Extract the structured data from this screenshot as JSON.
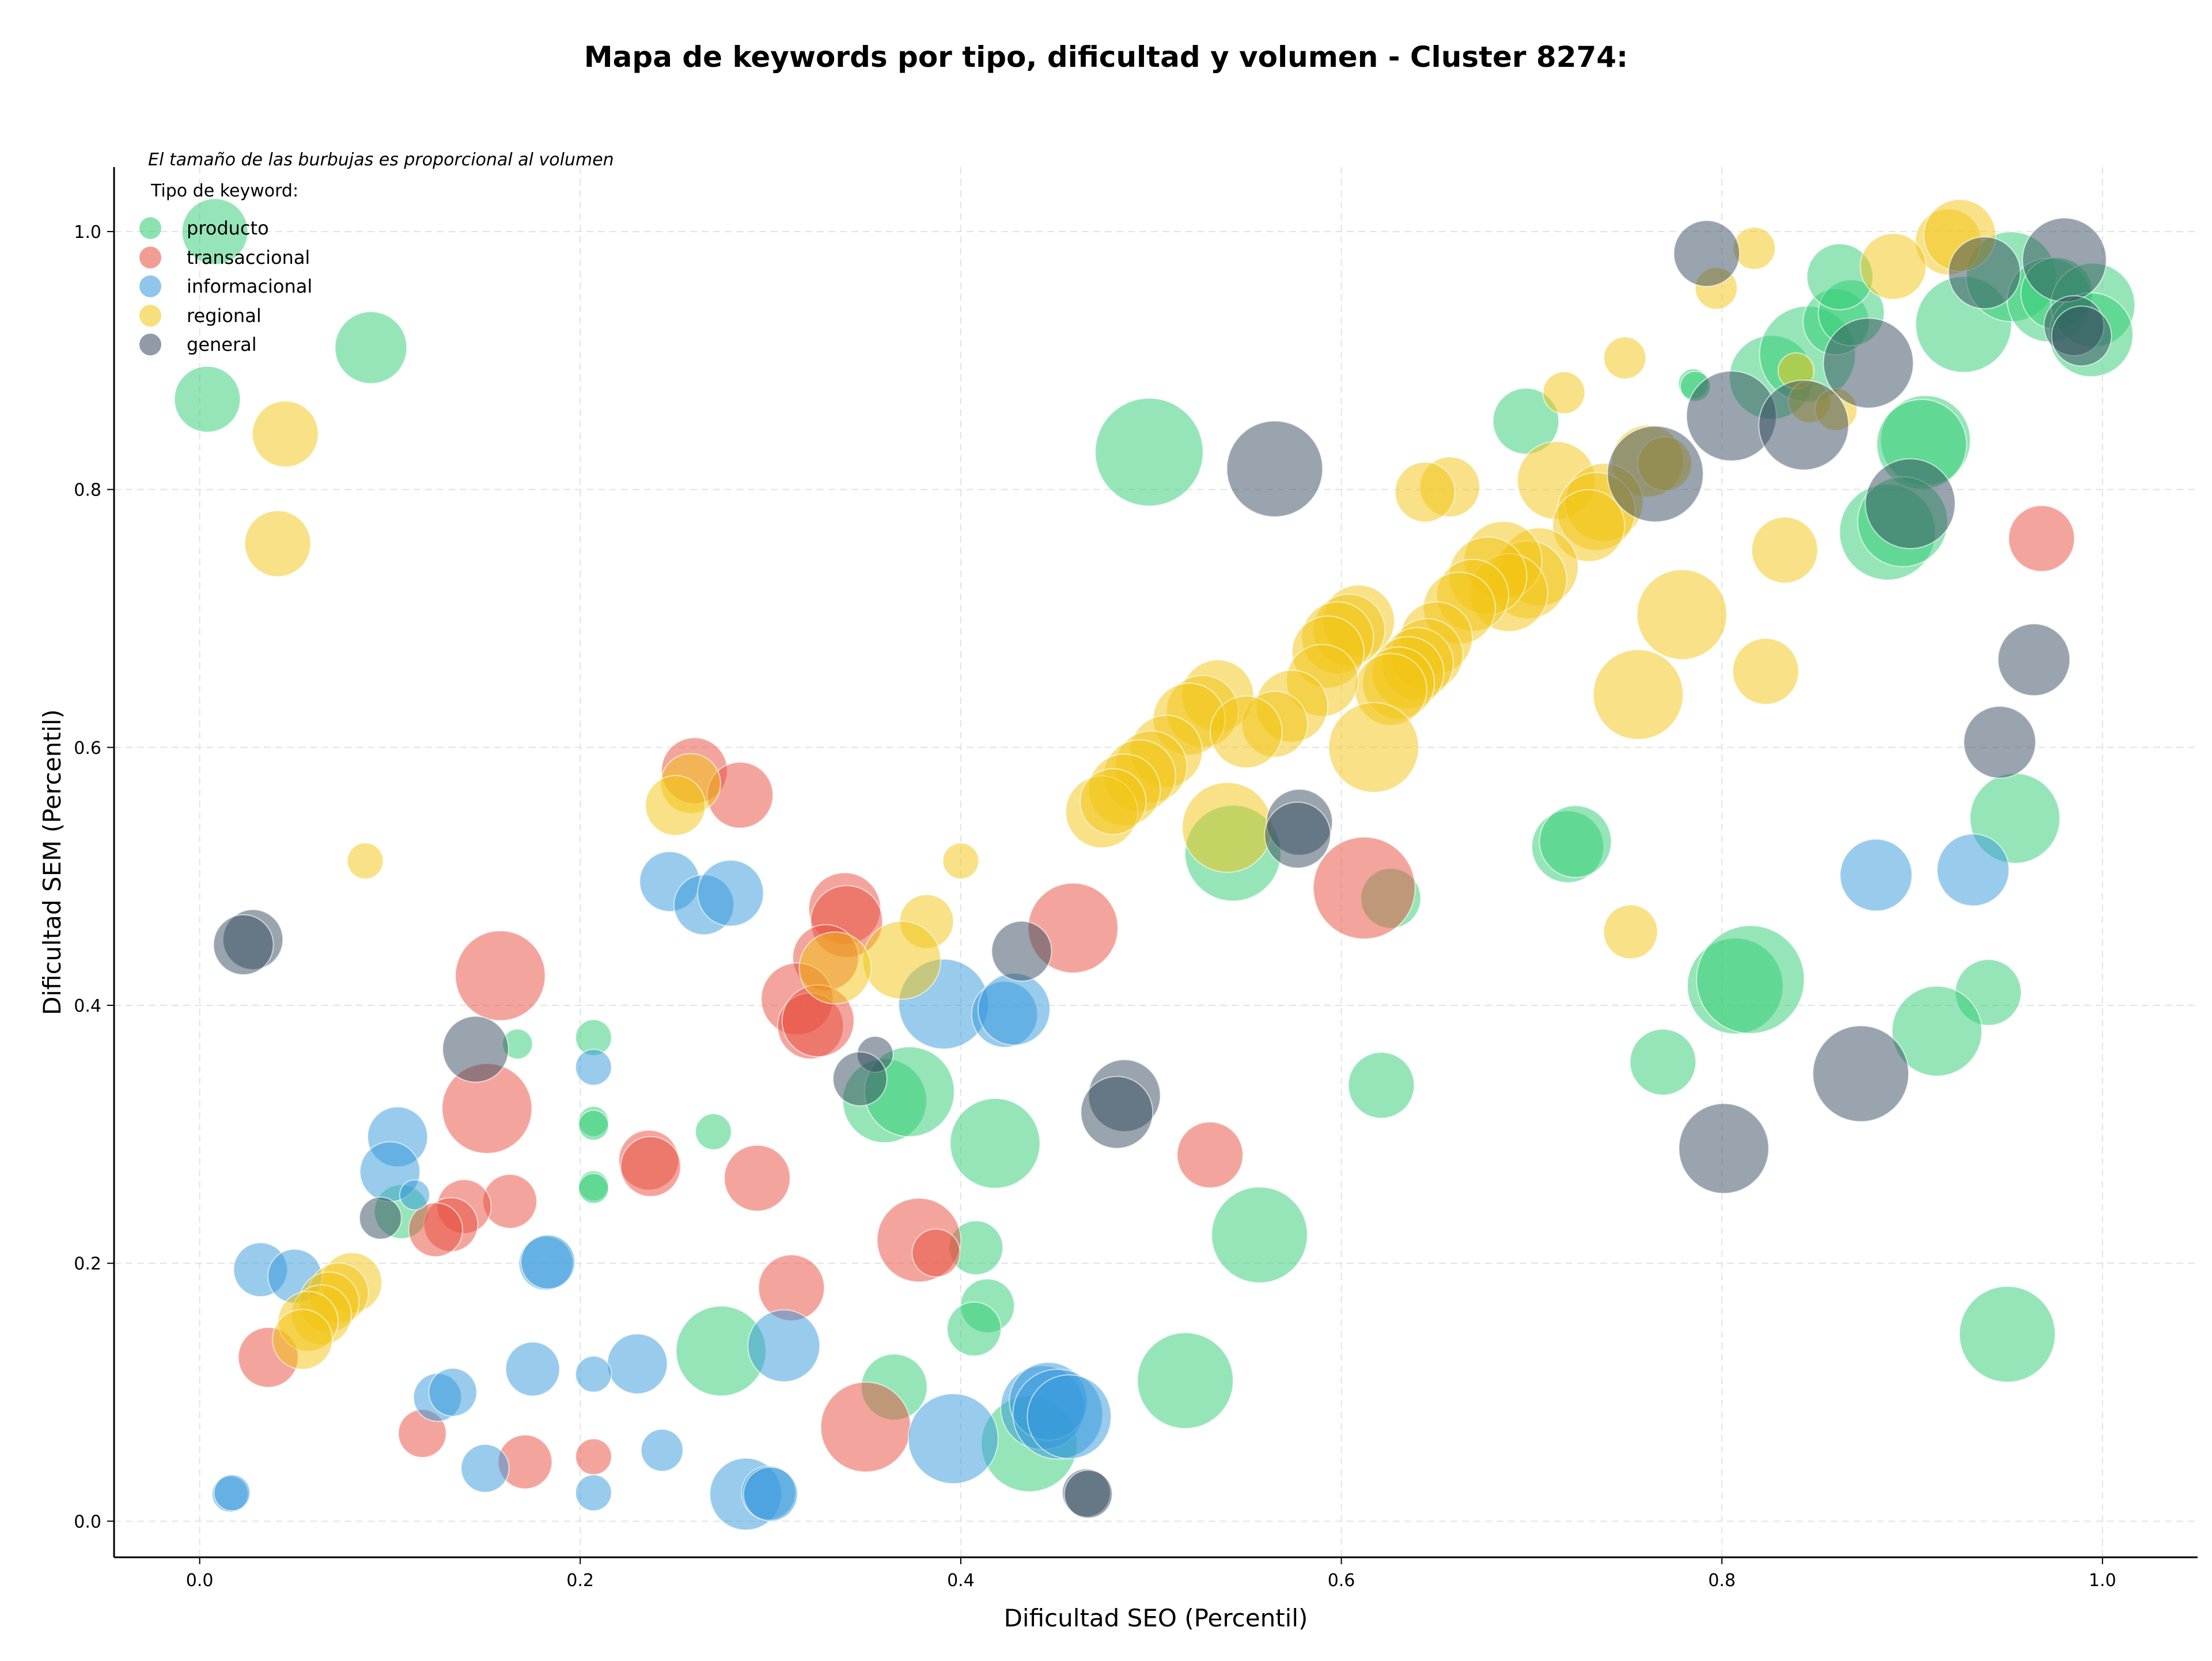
{
  "chart_data": {
    "type": "scatter",
    "title": "Mapa de keywords por tipo, dificultad y volumen - Cluster 8274:",
    "note": "El tamaño de las burbujas es proporcional al volumen",
    "xlabel": "Dificultad SEO (Percentil)",
    "ylabel": "Dificultad SEM (Percentil)",
    "xlim": [
      -0.045,
      1.05
    ],
    "ylim": [
      -0.028,
      1.05
    ],
    "xticks": [
      "0.0",
      "0.2",
      "0.4",
      "0.6",
      "0.8",
      "1.0"
    ],
    "yticks": [
      "0.0",
      "0.2",
      "0.4",
      "0.6",
      "0.8",
      "1.0"
    ],
    "grid": true,
    "legend_title": "Tipo de keyword:",
    "legend_position": "top-left",
    "series": [
      {
        "name": "producto",
        "color": "#2ecc71",
        "points": [
          [
            0.008,
            1.0,
            1.1
          ],
          [
            0.004,
            0.87,
            1.1
          ],
          [
            0.09,
            0.91,
            1.2
          ],
          [
            0.499,
            0.829,
            1.8
          ],
          [
            0.697,
            0.853,
            1.1
          ],
          [
            0.826,
            0.887,
            1.4
          ],
          [
            0.845,
            0.905,
            1.6
          ],
          [
            0.86,
            0.93,
            1.1
          ],
          [
            0.868,
            0.937,
            1.1
          ],
          [
            0.862,
            0.965,
            1.1
          ],
          [
            0.927,
            0.928,
            1.6
          ],
          [
            0.952,
            0.965,
            1.5
          ],
          [
            0.972,
            0.947,
            1.4
          ],
          [
            0.976,
            0.952,
            1.2
          ],
          [
            0.995,
            0.943,
            1.4
          ],
          [
            0.994,
            0.92,
            1.4
          ],
          [
            0.907,
            0.838,
            1.5
          ],
          [
            0.905,
            0.835,
            1.5
          ],
          [
            0.887,
            0.767,
            1.6
          ],
          [
            0.895,
            0.775,
            1.5
          ],
          [
            0.785,
            0.882,
            0.5
          ],
          [
            0.786,
            0.88,
            0.5
          ],
          [
            0.543,
            0.518,
            1.6
          ],
          [
            0.626,
            0.483,
            1.0
          ],
          [
            0.719,
            0.523,
            1.2
          ],
          [
            0.723,
            0.527,
            1.2
          ],
          [
            0.954,
            0.545,
            1.5
          ],
          [
            0.807,
            0.415,
            1.6
          ],
          [
            0.815,
            0.42,
            1.8
          ],
          [
            0.94,
            0.41,
            1.1
          ],
          [
            0.913,
            0.38,
            1.5
          ],
          [
            0.769,
            0.356,
            1.1
          ],
          [
            0.621,
            0.338,
            1.1
          ],
          [
            0.557,
            0.222,
            1.6
          ],
          [
            0.418,
            0.293,
            1.5
          ],
          [
            0.36,
            0.326,
            1.4
          ],
          [
            0.373,
            0.333,
            1.5
          ],
          [
            0.207,
            0.375,
            0.6
          ],
          [
            0.167,
            0.37,
            0.5
          ],
          [
            0.207,
            0.31,
            0.5
          ],
          [
            0.207,
            0.307,
            0.5
          ],
          [
            0.27,
            0.302,
            0.6
          ],
          [
            0.207,
            0.26,
            0.5
          ],
          [
            0.207,
            0.258,
            0.5
          ],
          [
            0.106,
            0.24,
            0.9
          ],
          [
            0.408,
            0.212,
            0.9
          ],
          [
            0.414,
            0.167,
            0.9
          ],
          [
            0.407,
            0.149,
            0.9
          ],
          [
            0.274,
            0.132,
            1.5
          ],
          [
            0.365,
            0.104,
            1.1
          ],
          [
            0.518,
            0.109,
            1.6
          ],
          [
            0.436,
            0.06,
            1.6
          ],
          [
            0.95,
            0.145,
            1.6
          ]
        ]
      },
      {
        "name": "transaccional",
        "color": "#e74c3c",
        "points": [
          [
            0.968,
            0.762,
            1.1
          ],
          [
            0.612,
            0.491,
            1.7
          ],
          [
            0.459,
            0.46,
            1.5
          ],
          [
            0.339,
            0.475,
            1.2
          ],
          [
            0.34,
            0.465,
            1.2
          ],
          [
            0.329,
            0.437,
            1.1
          ],
          [
            0.314,
            0.405,
            1.2
          ],
          [
            0.321,
            0.384,
            1.1
          ],
          [
            0.325,
            0.388,
            1.2
          ],
          [
            0.26,
            0.582,
            1.1
          ],
          [
            0.284,
            0.563,
            1.1
          ],
          [
            0.158,
            0.423,
            1.5
          ],
          [
            0.151,
            0.32,
            1.5
          ],
          [
            0.163,
            0.248,
            0.9
          ],
          [
            0.139,
            0.244,
            0.9
          ],
          [
            0.132,
            0.23,
            0.9
          ],
          [
            0.124,
            0.226,
            0.9
          ],
          [
            0.236,
            0.28,
            1.0
          ],
          [
            0.237,
            0.275,
            1.0
          ],
          [
            0.293,
            0.266,
            1.1
          ],
          [
            0.531,
            0.284,
            1.1
          ],
          [
            0.378,
            0.218,
            1.4
          ],
          [
            0.387,
            0.208,
            0.8
          ],
          [
            0.311,
            0.181,
            1.1
          ],
          [
            0.036,
            0.127,
            1.0
          ],
          [
            0.117,
            0.068,
            0.8
          ],
          [
            0.171,
            0.046,
            0.9
          ],
          [
            0.207,
            0.05,
            0.6
          ],
          [
            0.35,
            0.073,
            1.5
          ]
        ]
      },
      {
        "name": "informacional",
        "color": "#3498db",
        "points": [
          [
            0.881,
            0.501,
            1.2
          ],
          [
            0.932,
            0.505,
            1.2
          ],
          [
            0.391,
            0.401,
            1.5
          ],
          [
            0.423,
            0.393,
            1.1
          ],
          [
            0.428,
            0.397,
            1.2
          ],
          [
            0.247,
            0.496,
            1.0
          ],
          [
            0.265,
            0.478,
            1.0
          ],
          [
            0.279,
            0.487,
            1.1
          ],
          [
            0.207,
            0.352,
            0.6
          ],
          [
            0.104,
            0.298,
            1.0
          ],
          [
            0.1,
            0.271,
            1.0
          ],
          [
            0.113,
            0.253,
            0.5
          ],
          [
            0.182,
            0.2,
            0.9
          ],
          [
            0.183,
            0.201,
            0.9
          ],
          [
            0.032,
            0.195,
            0.9
          ],
          [
            0.05,
            0.19,
            0.9
          ],
          [
            0.175,
            0.118,
            0.9
          ],
          [
            0.23,
            0.122,
            1.0
          ],
          [
            0.207,
            0.114,
            0.6
          ],
          [
            0.125,
            0.096,
            0.8
          ],
          [
            0.133,
            0.1,
            0.8
          ],
          [
            0.307,
            0.136,
            1.2
          ],
          [
            0.243,
            0.055,
            0.7
          ],
          [
            0.15,
            0.041,
            0.8
          ],
          [
            0.207,
            0.022,
            0.6
          ],
          [
            0.016,
            0.021,
            0.6
          ],
          [
            0.017,
            0.022,
            0.6
          ],
          [
            0.287,
            0.021,
            1.2
          ],
          [
            0.299,
            0.022,
            0.9
          ],
          [
            0.3,
            0.021,
            0.9
          ],
          [
            0.396,
            0.064,
            1.5
          ],
          [
            0.443,
            0.088,
            1.4
          ],
          [
            0.446,
            0.093,
            1.3
          ],
          [
            0.451,
            0.083,
            1.5
          ],
          [
            0.457,
            0.081,
            1.4
          ]
        ]
      },
      {
        "name": "regional",
        "color": "#f1c40f",
        "points": [
          [
            0.919,
            0.992,
            1.1
          ],
          [
            0.925,
            0.997,
            1.2
          ],
          [
            0.89,
            0.973,
            1.1
          ],
          [
            0.817,
            0.987,
            0.7
          ],
          [
            0.797,
            0.956,
            0.7
          ],
          [
            0.749,
            0.902,
            0.7
          ],
          [
            0.717,
            0.875,
            0.7
          ],
          [
            0.839,
            0.892,
            0.6
          ],
          [
            0.846,
            0.868,
            0.7
          ],
          [
            0.86,
            0.862,
            0.7
          ],
          [
            0.761,
            0.822,
            1.2
          ],
          [
            0.77,
            0.82,
            0.9
          ],
          [
            0.713,
            0.807,
            1.3
          ],
          [
            0.657,
            0.802,
            1.0
          ],
          [
            0.644,
            0.798,
            1.0
          ],
          [
            0.738,
            0.79,
            1.3
          ],
          [
            0.734,
            0.783,
            1.3
          ],
          [
            0.73,
            0.772,
            1.2
          ],
          [
            0.833,
            0.753,
            1.1
          ],
          [
            0.704,
            0.74,
            1.3
          ],
          [
            0.698,
            0.73,
            1.3
          ],
          [
            0.685,
            0.745,
            1.3
          ],
          [
            0.688,
            0.72,
            1.3
          ],
          [
            0.677,
            0.733,
            1.3
          ],
          [
            0.669,
            0.718,
            1.2
          ],
          [
            0.662,
            0.708,
            1.2
          ],
          [
            0.779,
            0.703,
            1.5
          ],
          [
            0.609,
            0.698,
            1.2
          ],
          [
            0.604,
            0.691,
            1.2
          ],
          [
            0.598,
            0.685,
            1.2
          ],
          [
            0.593,
            0.674,
            1.2
          ],
          [
            0.65,
            0.685,
            1.2
          ],
          [
            0.645,
            0.672,
            1.2
          ],
          [
            0.64,
            0.665,
            1.2
          ],
          [
            0.635,
            0.658,
            1.2
          ],
          [
            0.63,
            0.65,
            1.2
          ],
          [
            0.626,
            0.645,
            1.2
          ],
          [
            0.823,
            0.659,
            1.1
          ],
          [
            0.59,
            0.652,
            1.2
          ],
          [
            0.574,
            0.632,
            1.2
          ],
          [
            0.535,
            0.64,
            1.2
          ],
          [
            0.527,
            0.628,
            1.2
          ],
          [
            0.52,
            0.622,
            1.2
          ],
          [
            0.565,
            0.618,
            1.1
          ],
          [
            0.55,
            0.612,
            1.2
          ],
          [
            0.756,
            0.641,
            1.5
          ],
          [
            0.617,
            0.6,
            1.5
          ],
          [
            0.508,
            0.597,
            1.2
          ],
          [
            0.5,
            0.585,
            1.2
          ],
          [
            0.494,
            0.578,
            1.2
          ],
          [
            0.486,
            0.567,
            1.2
          ],
          [
            0.474,
            0.55,
            1.2
          ],
          [
            0.48,
            0.558,
            1.1
          ],
          [
            0.54,
            0.538,
            1.5
          ],
          [
            0.258,
            0.572,
            1.0
          ],
          [
            0.25,
            0.555,
            1.0
          ],
          [
            0.087,
            0.512,
            0.6
          ],
          [
            0.4,
            0.512,
            0.6
          ],
          [
            0.382,
            0.465,
            0.9
          ],
          [
            0.369,
            0.435,
            1.3
          ],
          [
            0.334,
            0.429,
            1.2
          ],
          [
            0.752,
            0.457,
            0.9
          ],
          [
            0.045,
            0.843,
            1.1
          ],
          [
            0.041,
            0.758,
            1.1
          ],
          [
            0.08,
            0.185,
            1.0
          ],
          [
            0.073,
            0.177,
            1.0
          ],
          [
            0.068,
            0.17,
            1.0
          ],
          [
            0.064,
            0.16,
            1.0
          ],
          [
            0.057,
            0.155,
            1.0
          ],
          [
            0.054,
            0.141,
            1.0
          ]
        ]
      },
      {
        "name": "general",
        "color": "#34495e",
        "points": [
          [
            0.792,
            0.983,
            1.1
          ],
          [
            0.938,
            0.968,
            1.2
          ],
          [
            0.98,
            0.978,
            1.4
          ],
          [
            0.985,
            0.927,
            1.0
          ],
          [
            0.989,
            0.919,
            1.0
          ],
          [
            0.877,
            0.898,
            1.5
          ],
          [
            0.805,
            0.857,
            1.5
          ],
          [
            0.843,
            0.85,
            1.5
          ],
          [
            0.565,
            0.816,
            1.6
          ],
          [
            0.765,
            0.812,
            1.6
          ],
          [
            0.899,
            0.789,
            1.5
          ],
          [
            0.964,
            0.668,
            1.2
          ],
          [
            0.946,
            0.604,
            1.2
          ],
          [
            0.578,
            0.542,
            1.1
          ],
          [
            0.577,
            0.532,
            1.1
          ],
          [
            0.432,
            0.442,
            1.0
          ],
          [
            0.028,
            0.451,
            1.0
          ],
          [
            0.023,
            0.447,
            1.0
          ],
          [
            0.145,
            0.366,
            1.1
          ],
          [
            0.355,
            0.362,
            0.6
          ],
          [
            0.347,
            0.343,
            0.9
          ],
          [
            0.486,
            0.33,
            1.2
          ],
          [
            0.482,
            0.317,
            1.2
          ],
          [
            0.873,
            0.347,
            1.6
          ],
          [
            0.801,
            0.289,
            1.5
          ],
          [
            0.095,
            0.235,
            0.7
          ],
          [
            0.466,
            0.022,
            0.8
          ],
          [
            0.467,
            0.021,
            0.8
          ]
        ]
      }
    ]
  }
}
